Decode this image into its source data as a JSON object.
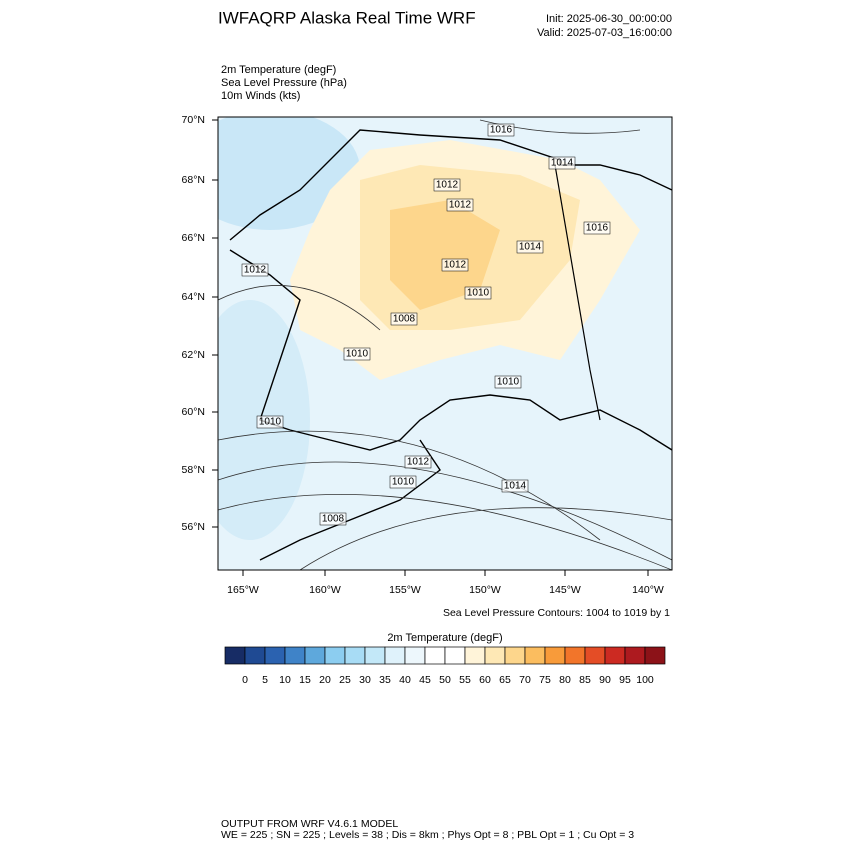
{
  "header": {
    "title": "IWFAQRP Alaska Real Time WRF",
    "init": "Init: 2025-06-30_00:00:00",
    "valid": "Valid: 2025-07-03_16:00:00"
  },
  "fields": [
    "2m Temperature   (degF)",
    "Sea Level Pressure   (hPa)",
    "10m Winds   (kts)"
  ],
  "map": {
    "lat_labels": [
      "70°N",
      "68°N",
      "66°N",
      "64°N",
      "62°N",
      "60°N",
      "58°N",
      "56°N"
    ],
    "lon_labels": [
      "165°W",
      "160°W",
      "155°W",
      "150°W",
      "145°W",
      "140°W"
    ],
    "contour_labels": [
      "1016",
      "1014",
      "1012",
      "1012",
      "1016",
      "1014",
      "1012",
      "1012",
      "1010",
      "1008",
      "1010",
      "1010",
      "1010",
      "1012",
      "1010",
      "1014",
      "1008"
    ],
    "contour_note": "Sea Level Pressure Contours: 1004 to 1019 by 1"
  },
  "colorbar": {
    "title": "2m Temperature  (degF)",
    "labels": [
      "0",
      "5",
      "10",
      "15",
      "20",
      "25",
      "30",
      "35",
      "40",
      "45",
      "50",
      "55",
      "60",
      "65",
      "70",
      "75",
      "80",
      "85",
      "90",
      "95",
      "100"
    ],
    "colors": [
      "#172c65",
      "#1f4a93",
      "#2b62b0",
      "#3f83c8",
      "#5ea8dc",
      "#8ccdf0",
      "#a8dcf5",
      "#c3e8f8",
      "#dff2fb",
      "#edf7fc",
      "#ffffff",
      "#ffffff",
      "#fff4d9",
      "#fee8b5",
      "#fdd68c",
      "#fbbd5f",
      "#f89b3a",
      "#f2752a",
      "#e44d26",
      "#cc2a22",
      "#ad1a1f",
      "#8c1218"
    ]
  },
  "footer": [
    "OUTPUT FROM WRF V4.6.1 MODEL",
    "WE = 225 ; SN = 225 ; Levels = 38 ; Dis = 8km ; Phys Opt = 8 ; PBL Opt = 1 ; Cu Opt = 3"
  ]
}
